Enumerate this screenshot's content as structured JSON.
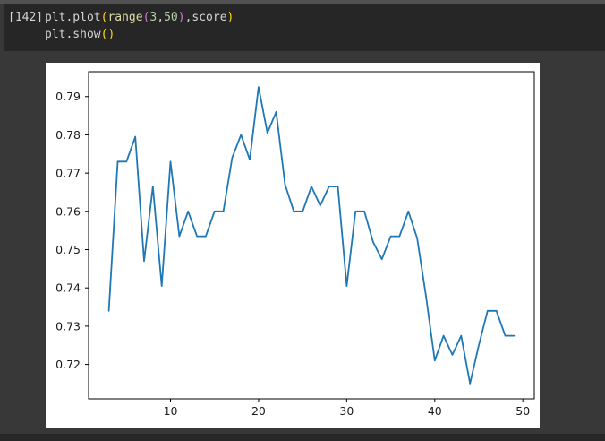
{
  "notebook_cell": {
    "execution_label": "[142]",
    "token_colors": {
      "base": "#d4d4d4",
      "builtin": "#dcdcaa",
      "number": "#b5cea8",
      "bracket1": "#ffd700",
      "bracket2": "#da70d6"
    },
    "code_lines": [
      {
        "tokens": [
          {
            "t": "plt.plot",
            "c": "base"
          },
          {
            "t": "(",
            "c": "bracket1"
          },
          {
            "t": "range",
            "c": "builtin"
          },
          {
            "t": "(",
            "c": "bracket2"
          },
          {
            "t": "3",
            "c": "number"
          },
          {
            "t": ",",
            "c": "base"
          },
          {
            "t": "50",
            "c": "number"
          },
          {
            "t": ")",
            "c": "bracket2"
          },
          {
            "t": ",score",
            "c": "base"
          },
          {
            "t": ")",
            "c": "bracket1"
          }
        ]
      },
      {
        "tokens": [
          {
            "t": "plt.show",
            "c": "base"
          },
          {
            "t": "(",
            "c": "bracket1"
          },
          {
            "t": ")",
            "c": "bracket1"
          }
        ]
      }
    ]
  },
  "chart_data": {
    "type": "line",
    "title": "",
    "xlabel": "",
    "ylabel": "",
    "grid": false,
    "legend": false,
    "figure_bg": "#ffffff",
    "line_color": "#1f77b4",
    "xlim": [
      0.7,
      51.3
    ],
    "ylim": [
      0.711,
      0.7965
    ],
    "xticks": {
      "values": [
        10,
        20,
        30,
        40,
        50
      ],
      "labels": [
        "10",
        "20",
        "30",
        "40",
        "50"
      ]
    },
    "yticks": {
      "values": [
        0.72,
        0.73,
        0.74,
        0.75,
        0.76,
        0.77,
        0.78,
        0.79
      ],
      "labels": [
        "0.72",
        "0.73",
        "0.74",
        "0.75",
        "0.76",
        "0.77",
        "0.78",
        "0.79"
      ]
    },
    "x": [
      3,
      4,
      5,
      6,
      7,
      8,
      9,
      10,
      11,
      12,
      13,
      14,
      15,
      16,
      17,
      18,
      19,
      20,
      21,
      22,
      23,
      24,
      25,
      26,
      27,
      28,
      29,
      30,
      31,
      32,
      33,
      34,
      35,
      36,
      37,
      38,
      39,
      40,
      41,
      42,
      43,
      44,
      45,
      46,
      47,
      48,
      49
    ],
    "series": [
      {
        "name": "score",
        "values": [
          0.734,
          0.773,
          0.773,
          0.7795,
          0.747,
          0.7665,
          0.7405,
          0.773,
          0.7535,
          0.76,
          0.7535,
          0.7535,
          0.76,
          0.76,
          0.774,
          0.78,
          0.7735,
          0.7925,
          0.7805,
          0.786,
          0.767,
          0.76,
          0.76,
          0.7665,
          0.7615,
          0.7665,
          0.7665,
          0.7405,
          0.76,
          0.76,
          0.752,
          0.7475,
          0.7535,
          0.7535,
          0.76,
          0.753,
          0.738,
          0.721,
          0.7275,
          0.7225,
          0.7275,
          0.715,
          0.725,
          0.734,
          0.734,
          0.7275,
          0.7275
        ]
      }
    ]
  },
  "colors": {
    "page_bg": "#383838",
    "cell_bg": "#262626",
    "top_strip": "#515151",
    "bottom_strip": "#272727"
  }
}
